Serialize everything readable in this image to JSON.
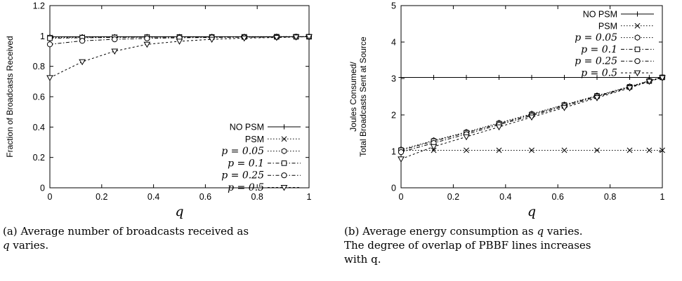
{
  "chart_data": [
    {
      "type": "line",
      "xlabel": "q",
      "ylabel": "Fraction of Broadcasts Received",
      "xlim": [
        0,
        1
      ],
      "ylim": [
        0,
        1.2
      ],
      "x_ticks": [
        "0",
        "0.2",
        "0.4",
        "0.6",
        "0.8",
        "1"
      ],
      "y_ticks": [
        "0",
        "0.2",
        "0.4",
        "0.6",
        "0.8",
        "1",
        "1.2"
      ],
      "grid": false,
      "legend_position": "bottom-right",
      "x": [
        0,
        0.125,
        0.25,
        0.375,
        0.5,
        0.625,
        0.75,
        0.875,
        0.95,
        0.99,
        1.0
      ],
      "series": [
        {
          "name": "NO PSM",
          "marker": "plus",
          "dash": "solid",
          "values": [
            0.995,
            0.995,
            0.995,
            0.995,
            0.995,
            0.995,
            0.995,
            0.995,
            0.995,
            0.995,
            0.995
          ]
        },
        {
          "name": "PSM",
          "marker": "cross",
          "dash": "dotted",
          "values": [
            0.99,
            0.992,
            0.993,
            0.993,
            0.994,
            0.994,
            0.995,
            0.995,
            0.995,
            0.995,
            0.995
          ]
        },
        {
          "name": "p = 0.05",
          "marker": "hexagon",
          "dash": "dotted",
          "values": [
            0.99,
            0.991,
            0.992,
            0.993,
            0.993,
            0.994,
            0.994,
            0.995,
            0.995,
            0.995,
            0.995
          ]
        },
        {
          "name": "p = 0.1",
          "marker": "square",
          "dash": "dashdot",
          "values": [
            0.985,
            0.988,
            0.99,
            0.992,
            0.993,
            0.993,
            0.994,
            0.995,
            0.995,
            0.995,
            0.995
          ]
        },
        {
          "name": "p = 0.25",
          "marker": "circle",
          "dash": "dashdot",
          "values": [
            0.945,
            0.968,
            0.978,
            0.984,
            0.988,
            0.99,
            0.992,
            0.993,
            0.994,
            0.995,
            0.995
          ]
        },
        {
          "name": "p = 0.5",
          "marker": "triangle-down",
          "dash": "dashed",
          "values": [
            0.725,
            0.83,
            0.9,
            0.945,
            0.965,
            0.978,
            0.986,
            0.99,
            0.993,
            0.995,
            0.995
          ]
        }
      ]
    },
    {
      "type": "line",
      "xlabel": "q",
      "ylabel": "Joules Consumed/ Total Broadcasts Sent at Source",
      "ylabel_lines": [
        "Joules Consumed/",
        "Total Broadcasts Sent at Source"
      ],
      "xlim": [
        0,
        1
      ],
      "ylim": [
        0,
        5
      ],
      "x_ticks": [
        "0",
        "0.2",
        "0.4",
        "0.6",
        "0.8",
        "1"
      ],
      "y_ticks": [
        "0",
        "1",
        "2",
        "3",
        "4",
        "5"
      ],
      "grid": false,
      "legend_position": "top-right",
      "x": [
        0,
        0.125,
        0.25,
        0.375,
        0.5,
        0.625,
        0.75,
        0.875,
        0.95,
        0.99,
        1.0
      ],
      "series": [
        {
          "name": "NO PSM",
          "marker": "plus",
          "dash": "solid",
          "values": [
            3.03,
            3.03,
            3.03,
            3.03,
            3.03,
            3.03,
            3.03,
            3.03,
            3.03,
            3.03,
            3.03
          ]
        },
        {
          "name": "PSM",
          "marker": "cross",
          "dash": "dotted",
          "values": [
            1.03,
            1.03,
            1.03,
            1.03,
            1.03,
            1.03,
            1.03,
            1.03,
            1.03,
            1.03,
            1.03
          ]
        },
        {
          "name": "p = 0.05",
          "marker": "hexagon",
          "dash": "dotted",
          "values": [
            1.05,
            1.3,
            1.53,
            1.78,
            2.03,
            2.28,
            2.53,
            2.78,
            2.94,
            3.02,
            3.03
          ]
        },
        {
          "name": "p = 0.1",
          "marker": "square",
          "dash": "dashdot",
          "values": [
            1.03,
            1.28,
            1.51,
            1.76,
            2.01,
            2.27,
            2.52,
            2.77,
            2.93,
            3.01,
            3.03
          ]
        },
        {
          "name": "p = 0.25",
          "marker": "circle",
          "dash": "dashdot",
          "values": [
            0.98,
            1.23,
            1.47,
            1.73,
            1.98,
            2.24,
            2.5,
            2.76,
            2.93,
            3.01,
            3.03
          ]
        },
        {
          "name": "p = 0.5",
          "marker": "triangle-down",
          "dash": "dashed",
          "values": [
            0.79,
            1.13,
            1.4,
            1.67,
            1.94,
            2.2,
            2.47,
            2.74,
            2.92,
            3.0,
            3.02
          ]
        }
      ]
    }
  ],
  "captions": {
    "a": {
      "label": "(a)",
      "lines": [
        "Average number of broadcasts received as",
        "varies."
      ],
      "var": "q"
    },
    "b": {
      "label": "(b)",
      "lines": [
        "Average energy consumption as",
        "varies.",
        "The degree of overlap of PBBF lines increases",
        "with q."
      ],
      "var": "q"
    }
  }
}
